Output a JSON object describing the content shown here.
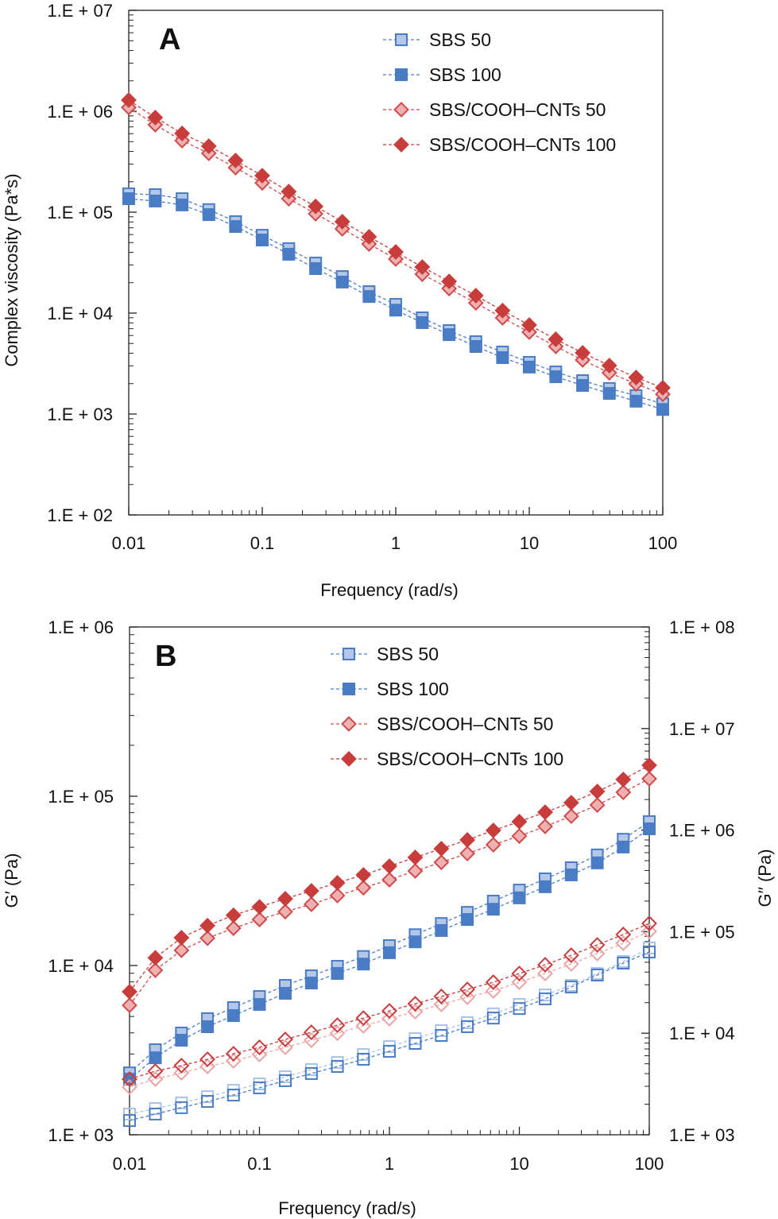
{
  "chart_data": [
    {
      "type": "line",
      "panel_label": "A",
      "xlabel": "Frequency (rad/s)",
      "ylabel": "Complex viscosity (Pa*s)",
      "xscale": "log",
      "yscale": "log",
      "xlim": [
        0.01,
        100
      ],
      "ylim": [
        100,
        10000000
      ],
      "x_tick_labels": [
        "0.01",
        "0.1",
        "1",
        "10",
        "100"
      ],
      "y_tick_labels": [
        "1.E + 02",
        "1.E + 03",
        "1.E + 04",
        "1.E + 05",
        "1.E + 06",
        "1.E + 07"
      ],
      "grid": false,
      "legend_placement": "top-right",
      "x": [
        0.01,
        0.0158,
        0.0251,
        0.0398,
        0.0631,
        0.1,
        0.158,
        0.251,
        0.398,
        0.631,
        1,
        1.58,
        2.51,
        3.98,
        6.31,
        10,
        15.8,
        25.1,
        39.8,
        63.1,
        100
      ],
      "series": [
        {
          "name": "SBS 50",
          "marker": "square",
          "style": "filled-light",
          "color": "#4a7cc6",
          "fill": "#b4c7e7",
          "values": [
            152000,
            149000,
            136000,
            106000,
            80500,
            59000,
            43500,
            31300,
            23000,
            16300,
            12200,
            8970,
            6710,
            5210,
            4110,
            3250,
            2610,
            2140,
            1790,
            1520,
            1260
          ]
        },
        {
          "name": "SBS 100",
          "marker": "square",
          "style": "filled-dark",
          "color": "#4a7cc6",
          "fill": "#4a7cc6",
          "values": [
            136000,
            129000,
            118000,
            94600,
            72100,
            53000,
            38300,
            27600,
            20300,
            14600,
            10700,
            8050,
            6120,
            4670,
            3620,
            2920,
            2340,
            1920,
            1600,
            1340,
            1110
          ]
        },
        {
          "name": "SBS/COOH–CNTs 50",
          "marker": "diamond",
          "style": "filled-light",
          "color": "#d04a4a",
          "fill": "#eeb0b0",
          "values": [
            1090000,
            735000,
            512000,
            383000,
            276000,
            195000,
            136000,
            96400,
            68400,
            48400,
            34300,
            24300,
            17500,
            12600,
            8970,
            6470,
            4670,
            3430,
            2560,
            1990,
            1570
          ]
        },
        {
          "name": "SBS/COOH–CNTs 100",
          "marker": "diamond",
          "style": "filled-dark",
          "color": "#c83c3c",
          "fill": "#c83c3c",
          "values": [
            1290000,
            865000,
            603000,
            451000,
            325000,
            230000,
            160000,
            114000,
            80500,
            57000,
            40400,
            28600,
            20600,
            14900,
            10600,
            7620,
            5500,
            4040,
            3020,
            2300,
            1820
          ]
        }
      ]
    },
    {
      "type": "line",
      "panel_label": "B",
      "xlabel": "Frequency (rad/s)",
      "ylabel": "G′ (Pa)",
      "ylabel_right": "G′′ (Pa)",
      "xscale": "log",
      "yscale": "log",
      "xlim": [
        0.01,
        100
      ],
      "ylim": [
        1000,
        1000000
      ],
      "ylim_right": [
        1000,
        100000000
      ],
      "x_tick_labels": [
        "0.01",
        "0.1",
        "1",
        "10",
        "100"
      ],
      "y_tick_labels": [
        "1.E + 03",
        "1.E + 04",
        "1.E + 05",
        "1.E + 06"
      ],
      "y_tick_labels_right": [
        "1.E + 03",
        "1.E + 04",
        "1.E + 05",
        "1.E + 06",
        "1.E + 07",
        "1.E + 08"
      ],
      "grid": false,
      "legend_placement": "top-center",
      "x": [
        0.01,
        0.0158,
        0.0251,
        0.0398,
        0.0631,
        0.1,
        0.158,
        0.251,
        0.398,
        0.631,
        1,
        1.58,
        2.51,
        3.98,
        6.31,
        10,
        15.8,
        25.1,
        39.8,
        63.1,
        100
      ],
      "legend": [
        {
          "name": "SBS 50",
          "marker": "square",
          "style": "filled-light",
          "color": "#4a7cc6",
          "fill": "#b4c7e7"
        },
        {
          "name": "SBS 100",
          "marker": "square",
          "style": "filled-dark",
          "color": "#4a7cc6",
          "fill": "#4a7cc6"
        },
        {
          "name": "SBS/COOH–CNTs 50",
          "marker": "diamond",
          "style": "filled-light",
          "color": "#d04a4a",
          "fill": "#eeb0b0"
        },
        {
          "name": "SBS/COOH–CNTs 100",
          "marker": "diamond",
          "style": "filled-dark",
          "color": "#c83c3c",
          "fill": "#c83c3c"
        }
      ],
      "series": [
        {
          "name": "SBS 50",
          "axis": "left",
          "marker": "square",
          "style": "filled-light",
          "color": "#4a7cc6",
          "fill": "#b4c7e7",
          "values": [
            2320,
            3180,
            3990,
            4850,
            5640,
            6560,
            7630,
            8690,
            9890,
            11300,
            13100,
            15200,
            17700,
            20600,
            24000,
            27900,
            32500,
            37800,
            45000,
            55700,
            70800
          ]
        },
        {
          "name": "SBS 100",
          "axis": "left",
          "marker": "square",
          "style": "filled-dark",
          "color": "#4a7cc6",
          "fill": "#4a7cc6",
          "values": [
            2130,
            2850,
            3620,
            4350,
            5060,
            5890,
            6850,
            7880,
            8980,
            10200,
            11900,
            13800,
            16100,
            18700,
            21500,
            25100,
            29200,
            34300,
            40400,
            50100,
            64200
          ]
        },
        {
          "name": "SBS/COOH–CNTs 50",
          "axis": "left",
          "marker": "diamond",
          "style": "filled-light",
          "color": "#d04a4a",
          "fill": "#eeb0b0",
          "values": [
            5820,
            9380,
            12300,
            14500,
            16600,
            18700,
            20800,
            23000,
            25900,
            28800,
            32100,
            36200,
            40700,
            45900,
            51700,
            58200,
            66300,
            76300,
            88700,
            105500,
            126800
          ]
        },
        {
          "name": "SBS/COOH–CNTs 100",
          "axis": "left",
          "marker": "diamond",
          "style": "filled-dark",
          "color": "#c83c3c",
          "fill": "#c83c3c",
          "values": [
            7000,
            11100,
            14600,
            17200,
            19800,
            22200,
            24800,
            27600,
            30800,
            34300,
            38600,
            43500,
            49000,
            55200,
            62800,
            70800,
            80500,
            91600,
            106700,
            125600,
            152400
          ]
        },
        {
          "name": "SBS 50",
          "axis": "right",
          "marker": "square",
          "style": "hollow-light",
          "color": "#a9c2e8",
          "fill": "none",
          "values": [
            1600,
            1810,
            2060,
            2370,
            2740,
            3170,
            3730,
            4380,
            5150,
            6170,
            7390,
            8850,
            10600,
            12700,
            15500,
            19200,
            23800,
            29600,
            38700,
            50800,
            69000
          ]
        },
        {
          "name": "SBS 100",
          "axis": "right",
          "marker": "square",
          "style": "hollow-dark",
          "color": "#4a7cc6",
          "fill": "none",
          "values": [
            1380,
            1600,
            1850,
            2130,
            2460,
            2900,
            3410,
            4010,
            4710,
            5540,
            6640,
            7940,
            9510,
            11600,
            14100,
            17500,
            21800,
            28500,
            37400,
            49000,
            63100
          ]
        },
        {
          "name": "SBS/COOH–CNTs 50",
          "axis": "right",
          "marker": "diamond",
          "style": "hollow-light",
          "color": "#eba4a4",
          "fill": "none",
          "values": [
            2950,
            3530,
            4070,
            4710,
            5340,
            6170,
            7260,
            8530,
            10000,
            11800,
            13900,
            16300,
            19200,
            22600,
            26100,
            31800,
            38700,
            48100,
            60800,
            76900,
            100700
          ]
        },
        {
          "name": "SBS/COOH–CNTs 100",
          "axis": "right",
          "marker": "diamond",
          "style": "hollow-dark",
          "color": "#c83c3c",
          "fill": "none",
          "values": [
            3530,
            4230,
            4800,
            5540,
            6280,
            7260,
            8690,
            10200,
            12000,
            14100,
            16600,
            19500,
            23000,
            27000,
            31800,
            38700,
            47200,
            58600,
            74100,
            93800,
            120500
          ]
        }
      ]
    }
  ]
}
